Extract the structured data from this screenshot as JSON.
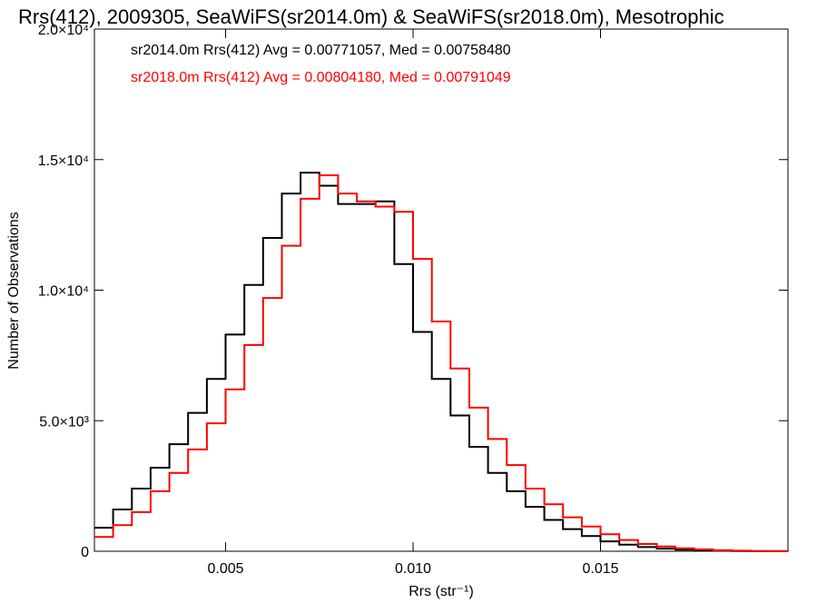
{
  "chart_data": {
    "type": "line",
    "title": "Rrs(412), 2009305, SeaWiFS(sr2014.0m) & SeaWiFS(sr2018.0m), Mesotrophic",
    "xlabel": "Rrs (str⁻¹)",
    "ylabel": "Number of Observations",
    "xlim": [
      0.0015,
      0.02
    ],
    "ylim": [
      0,
      20000
    ],
    "xticks": [
      {
        "value": 0.005,
        "label": "0.005"
      },
      {
        "value": 0.01,
        "label": "0.010"
      },
      {
        "value": 0.015,
        "label": "0.015"
      }
    ],
    "yticks": [
      {
        "value": 0,
        "label": "0"
      },
      {
        "value": 5000,
        "label": "5.0×10³"
      },
      {
        "value": 10000,
        "label": "1.0×10⁴"
      },
      {
        "value": 15000,
        "label": "1.5×10⁴"
      },
      {
        "value": 20000,
        "label": "2.0×10⁴"
      }
    ],
    "grid": false,
    "step": true,
    "x": [
      0.0015,
      0.002,
      0.0025,
      0.003,
      0.0035,
      0.004,
      0.0045,
      0.005,
      0.0055,
      0.006,
      0.0065,
      0.007,
      0.0075,
      0.008,
      0.0085,
      0.009,
      0.0095,
      0.01,
      0.0105,
      0.011,
      0.0115,
      0.012,
      0.0125,
      0.013,
      0.0135,
      0.014,
      0.0145,
      0.015,
      0.0155,
      0.016,
      0.0165,
      0.017,
      0.0175,
      0.018,
      0.0185,
      0.019,
      0.0195,
      0.02
    ],
    "series": [
      {
        "name": "sr2014.0m",
        "color": "#000000",
        "values": [
          900,
          1600,
          2400,
          3200,
          4100,
          5300,
          6600,
          8300,
          10200,
          12000,
          13700,
          14500,
          14000,
          13300,
          13300,
          13400,
          11000,
          8400,
          6600,
          5200,
          4000,
          3000,
          2300,
          1700,
          1200,
          850,
          580,
          380,
          250,
          160,
          100,
          60,
          30,
          20,
          12,
          5,
          2,
          0
        ]
      },
      {
        "name": "sr2018.0m",
        "color": "#ff0000",
        "values": [
          550,
          1000,
          1500,
          2300,
          3000,
          3900,
          4900,
          6200,
          7900,
          9700,
          11700,
          13500,
          14400,
          13700,
          13400,
          13200,
          13000,
          11200,
          8800,
          7000,
          5500,
          4300,
          3300,
          2400,
          1800,
          1300,
          950,
          650,
          430,
          280,
          180,
          110,
          70,
          40,
          20,
          10,
          4,
          0
        ]
      }
    ],
    "annotations": [
      {
        "text": "sr2014.0m Rrs(412) Avg = 0.00771057, Med = 0.00758480",
        "color": "#000000"
      },
      {
        "text": "sr2018.0m Rrs(412) Avg = 0.00804180, Med = 0.00791049",
        "color": "#ff0000"
      }
    ]
  }
}
